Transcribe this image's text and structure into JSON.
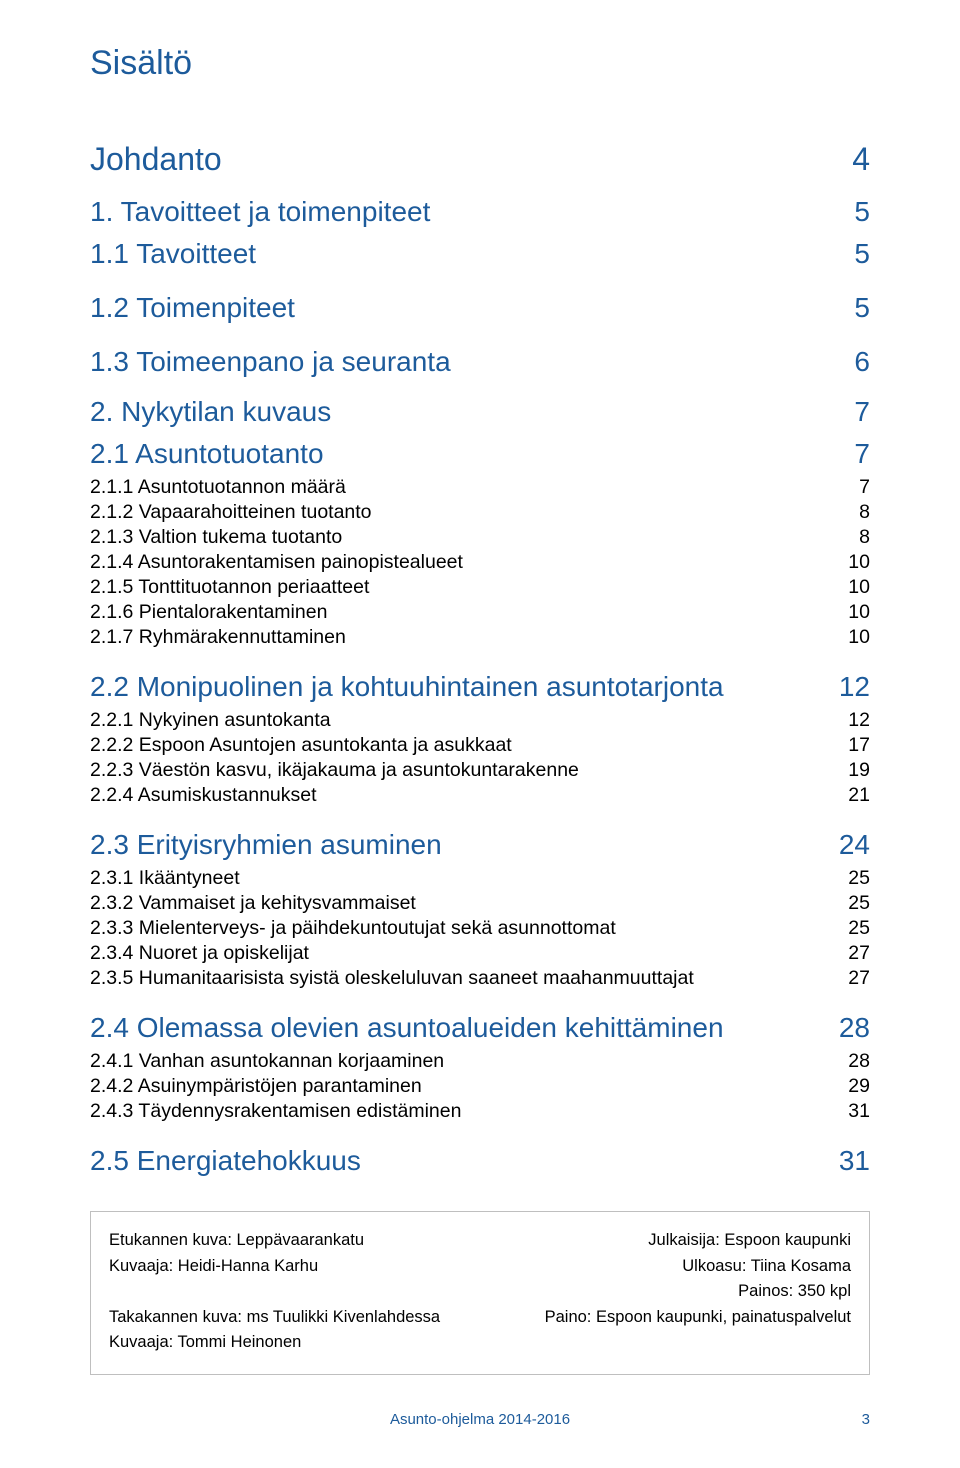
{
  "colors": {
    "blue": "#1d5b9b",
    "black": "#000000",
    "border": "#bfbfbf",
    "background": "#ffffff"
  },
  "typography": {
    "title_size_pt": 25,
    "lvl0_size_pt": 24,
    "lvl1_size_pt": 21,
    "lvl2_size_pt": 21,
    "lvl3_size_pt": 14
  },
  "title": "Sisältö",
  "toc": [
    {
      "level": 0,
      "color": "blue",
      "label": "Johdanto",
      "page": "4"
    },
    {
      "level": 1,
      "color": "blue",
      "label": "1. Tavoitteet ja toimenpiteet",
      "page": "5"
    },
    {
      "level": 2,
      "color": "blue",
      "label": "1.1 Tavoitteet",
      "page": "5",
      "first_after_lvl1": true
    },
    {
      "level": 2,
      "color": "blue",
      "label": "1.2 Toimenpiteet",
      "page": "5"
    },
    {
      "level": 2,
      "color": "blue",
      "label": "1.3 Toimeenpano ja seuranta",
      "page": "6"
    },
    {
      "level": 1,
      "color": "blue",
      "label": "2. Nykytilan kuvaus",
      "page": "7"
    },
    {
      "level": 2,
      "color": "blue",
      "label": "2.1 Asuntotuotanto",
      "page": "7",
      "first_after_lvl1": true
    },
    {
      "level": 3,
      "color": "black",
      "label": "2.1.1 Asuntotuotannon määrä",
      "page": "7"
    },
    {
      "level": 3,
      "color": "black",
      "label": "2.1.2 Vapaarahoitteinen tuotanto",
      "page": "8"
    },
    {
      "level": 3,
      "color": "black",
      "label": "2.1.3 Valtion tukema tuotanto",
      "page": "8"
    },
    {
      "level": 3,
      "color": "black",
      "label": "2.1.4 Asuntorakentamisen painopistealueet",
      "page": "10"
    },
    {
      "level": 3,
      "color": "black",
      "label": "2.1.5 Tonttituotannon periaatteet",
      "page": "10"
    },
    {
      "level": 3,
      "color": "black",
      "label": "2.1.6 Pientalorakentaminen",
      "page": "10"
    },
    {
      "level": 3,
      "color": "black",
      "label": "2.1.7 Ryhmärakennuttaminen",
      "page": "10"
    },
    {
      "level": 2,
      "color": "blue",
      "label": "2.2 Monipuolinen ja kohtuuhintainen asuntotarjonta",
      "page": "12"
    },
    {
      "level": 3,
      "color": "black",
      "label": "2.2.1 Nykyinen asuntokanta",
      "page": "12"
    },
    {
      "level": 3,
      "color": "black",
      "label": "2.2.2  Espoon Asuntojen asuntokanta ja asukkaat",
      "page": "17"
    },
    {
      "level": 3,
      "color": "black",
      "label": "2.2.3  Väestön kasvu, ikäjakauma ja asuntokuntarakenne",
      "page": "19"
    },
    {
      "level": 3,
      "color": "black",
      "label": "2.2.4  Asumiskustannukset",
      "page": "21"
    },
    {
      "level": 2,
      "color": "blue",
      "label": "2.3 Erityisryhmien asuminen",
      "page": "24"
    },
    {
      "level": 3,
      "color": "black",
      "label": "2.3.1 Ikääntyneet",
      "page": "25"
    },
    {
      "level": 3,
      "color": "black",
      "label": "2.3.2 Vammaiset ja kehitysvammaiset",
      "page": "25"
    },
    {
      "level": 3,
      "color": "black",
      "label": "2.3.3 Mielenterveys- ja päihdekuntoutujat sekä asunnottomat",
      "page": "25"
    },
    {
      "level": 3,
      "color": "black",
      "label": "2.3.4 Nuoret ja opiskelijat",
      "page": "27"
    },
    {
      "level": 3,
      "color": "black",
      "label": "2.3.5 Humanitaarisista syistä oleskeluluvan saaneet maahanmuuttajat",
      "page": "27"
    },
    {
      "level": 2,
      "color": "blue",
      "label": "2.4 Olemassa olevien asuntoalueiden kehittäminen",
      "page": "28"
    },
    {
      "level": 3,
      "color": "black",
      "label": "2.4.1  Vanhan asuntokannan korjaaminen",
      "page": "28"
    },
    {
      "level": 3,
      "color": "black",
      "label": "2.4.2  Asuinympäristöjen parantaminen",
      "page": "29"
    },
    {
      "level": 3,
      "color": "black",
      "label": "2.4.3  Täydennysrakentamisen edistäminen",
      "page": "31"
    },
    {
      "level": 2,
      "color": "blue",
      "label": "2.5  Energiatehokkuus",
      "page": "31"
    }
  ],
  "colophon": {
    "rows": [
      {
        "left": "Etukannen kuva: Leppävaarankatu",
        "right": "Julkaisija: Espoon kaupunki"
      },
      {
        "left": "Kuvaaja: Heidi-Hanna Karhu",
        "right": "Ulkoasu: Tiina Kosama"
      },
      {
        "left": "",
        "right": "Painos: 350 kpl"
      },
      {
        "left": "Takakannen kuva: ms Tuulikki Kivenlahdessa",
        "right": "Paino: Espoon kaupunki, painatuspalvelut"
      },
      {
        "left": "Kuvaaja: Tommi Heinonen",
        "right": ""
      }
    ]
  },
  "footer": {
    "center": "Asunto-ohjelma 2014-2016",
    "page": "3"
  }
}
